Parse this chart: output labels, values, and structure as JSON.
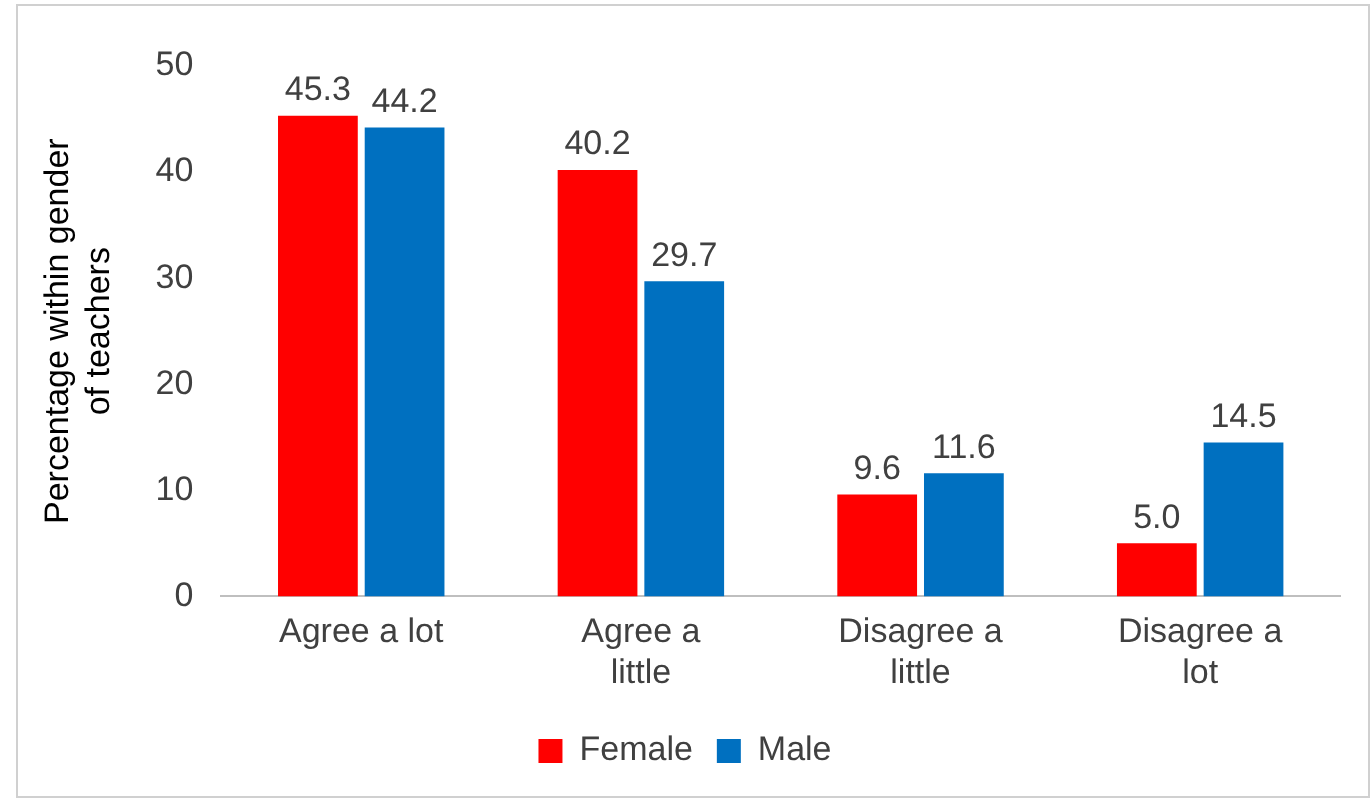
{
  "chart_data": {
    "type": "bar",
    "ylabel": "Percentage within gender of teachers",
    "categories": [
      "Agree a lot",
      "Agree a little",
      "Disagree a little",
      "Disagree a lot"
    ],
    "series": [
      {
        "name": "Female",
        "color": "#ff0000",
        "values": [
          45.3,
          40.2,
          9.6,
          5.0
        ],
        "value_labels": [
          "45.3",
          "40.2",
          "9.6",
          "5.0"
        ]
      },
      {
        "name": "Male",
        "color": "#0070c0",
        "values": [
          44.2,
          29.7,
          11.6,
          14.5
        ],
        "value_labels": [
          "44.2",
          "29.7",
          "11.6",
          "14.5"
        ]
      }
    ],
    "ylim": [
      0,
      50
    ],
    "yticks": [
      0,
      10,
      20,
      30,
      40,
      50
    ],
    "grid": false,
    "legend": "bottom"
  }
}
